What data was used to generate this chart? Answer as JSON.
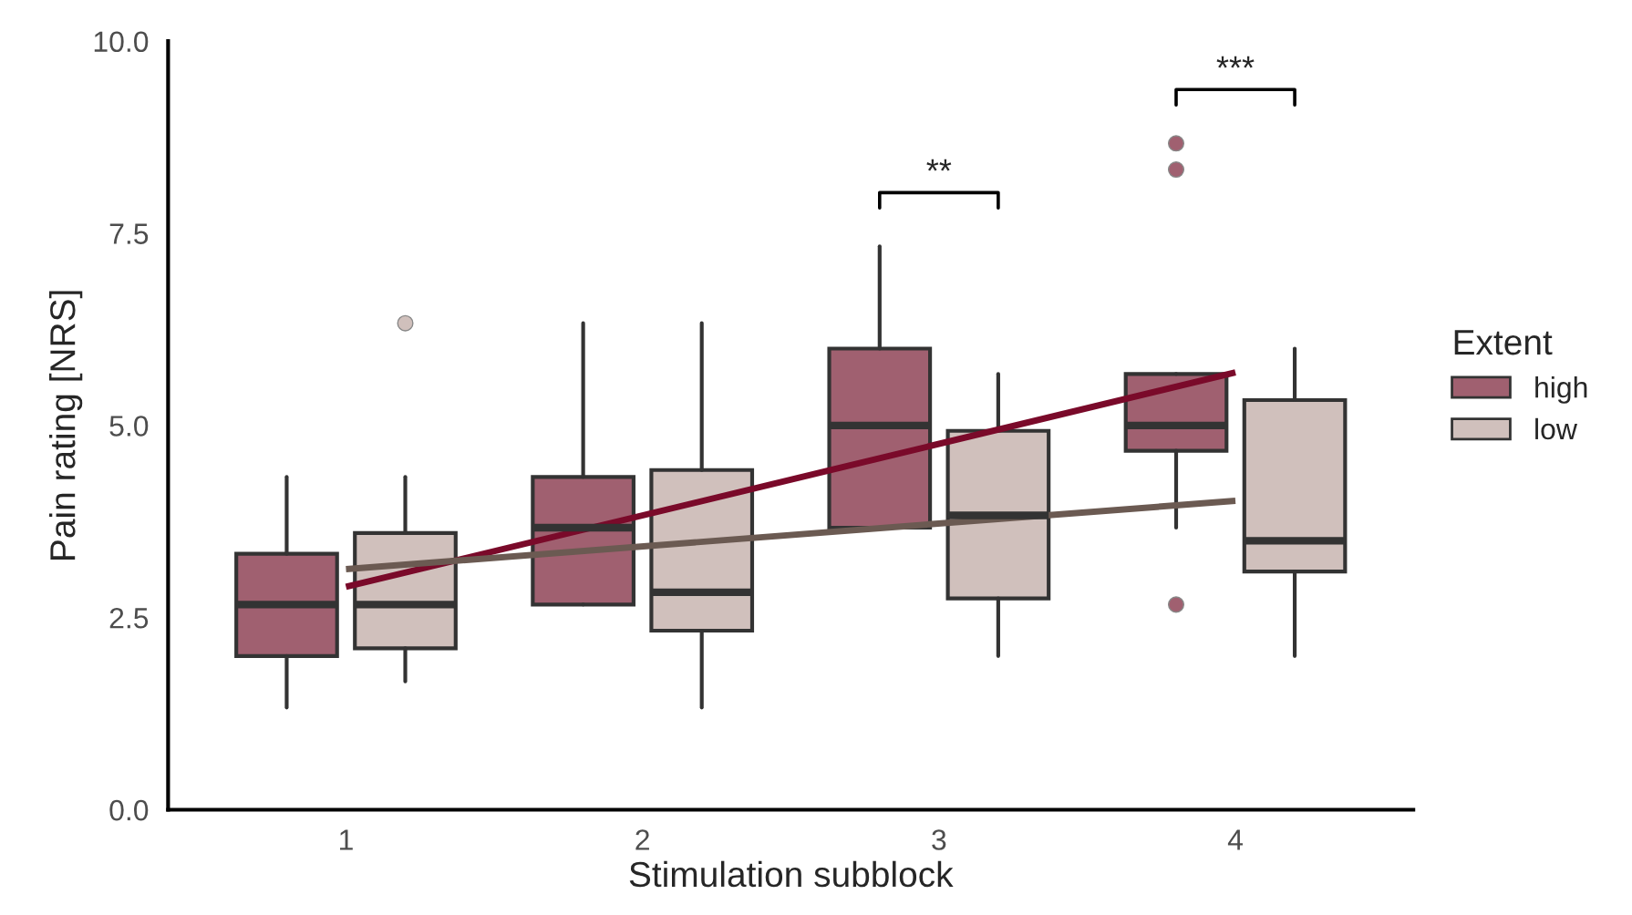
{
  "chart_data": {
    "type": "box",
    "xlabel": "Stimulation subblock",
    "ylabel": "Pain rating [NRS]",
    "legend_title": "Extent",
    "categories": [
      "1",
      "2",
      "3",
      "4"
    ],
    "series": [
      {
        "name": "high",
        "color": "#a06070",
        "boxes": [
          {
            "low": 1.33,
            "q1": 2.0,
            "median": 2.67,
            "q3": 3.33,
            "high": 4.33
          },
          {
            "low": 2.67,
            "q1": 2.67,
            "median": 3.67,
            "q3": 4.33,
            "high": 6.33
          },
          {
            "low": 3.67,
            "q1": 3.67,
            "median": 5.0,
            "q3": 6.0,
            "high": 7.33
          },
          {
            "low": 3.67,
            "q1": 4.67,
            "median": 5.0,
            "q3": 5.67,
            "high": 5.67,
            "outliers": [
              8.67,
              8.33,
              2.67
            ]
          }
        ]
      },
      {
        "name": "low",
        "color": "#d0c0bc",
        "boxes": [
          {
            "low": 1.67,
            "q1": 2.1,
            "median": 2.67,
            "q3": 3.6,
            "high": 4.33,
            "outliers": [
              6.33
            ]
          },
          {
            "low": 1.33,
            "q1": 2.33,
            "median": 2.83,
            "q3": 4.42,
            "high": 6.33
          },
          {
            "low": 2.0,
            "q1": 2.75,
            "median": 3.83,
            "q3": 4.93,
            "high": 5.67
          },
          {
            "low": 2.0,
            "q1": 3.1,
            "median": 3.5,
            "q3": 5.33,
            "high": 6.0
          }
        ]
      },
      {
        "type": "line",
        "color": "#7a0a2a",
        "x": [
          "1",
          "4"
        ],
        "values": [
          2.9,
          5.69
        ]
      },
      {
        "type": "line",
        "color": "#6b5a52",
        "x": [
          "1",
          "4"
        ],
        "values": [
          3.13,
          4.02
        ]
      }
    ],
    "annotations": [
      "**",
      "***"
    ],
    "ylim": [
      0,
      10
    ],
    "yticks": [
      {
        "value": 0,
        "label": "0.0"
      },
      {
        "value": 2.5,
        "label": "2.5"
      },
      {
        "value": 5,
        "label": "5.0"
      },
      {
        "value": 7.5,
        "label": "7.5"
      },
      {
        "value": 10,
        "label": "10.0"
      }
    ],
    "grid": false,
    "legend": "right"
  }
}
